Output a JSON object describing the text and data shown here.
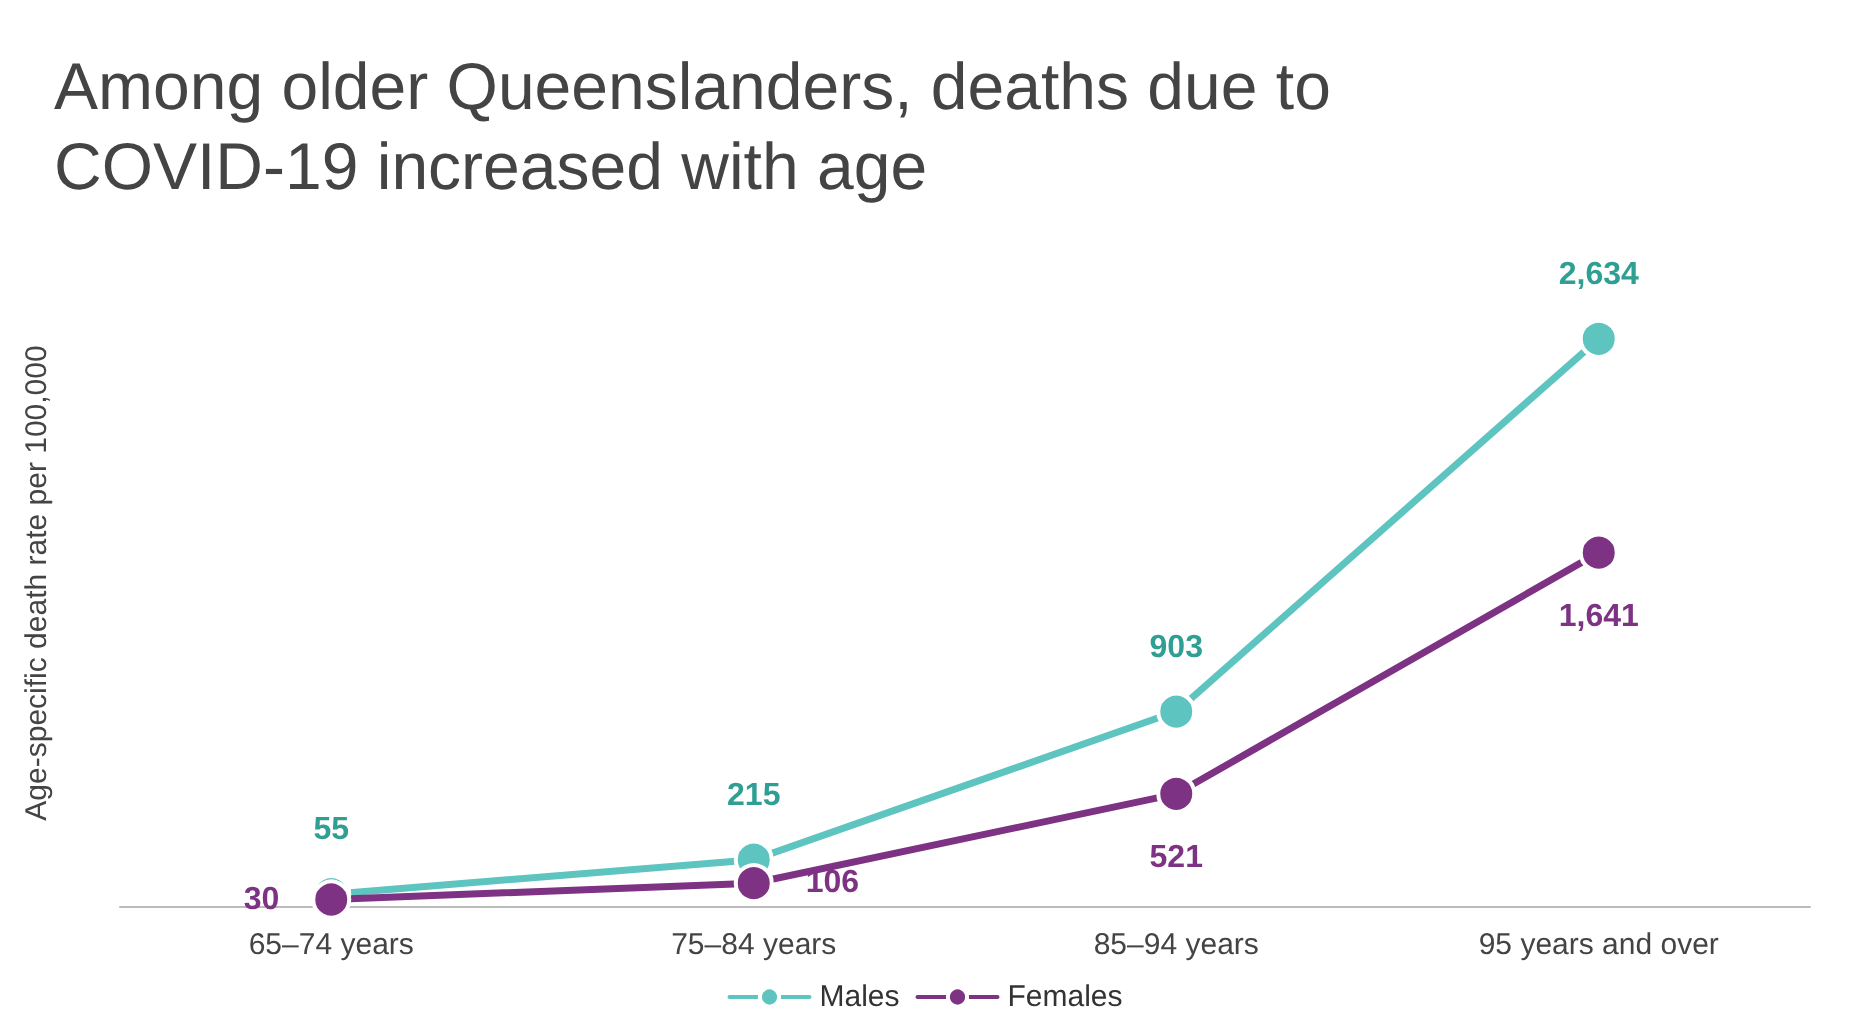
{
  "chart_data": {
    "type": "line",
    "title": "Among older Queenslanders, deaths due to COVID-19 increased with age",
    "ylabel": "Age-specific death rate per 100,000",
    "categories": [
      "65–74 years",
      "75–84 years",
      "85–94 years",
      "95 years and over"
    ],
    "series": [
      {
        "name": "Males",
        "color": "#5ec4c0",
        "values": [
          55,
          215,
          903,
          2634
        ],
        "value_labels": [
          "55",
          "215",
          "903",
          "2,634"
        ]
      },
      {
        "name": "Females",
        "color": "#7d3283",
        "values": [
          30,
          106,
          521,
          1641
        ],
        "value_labels": [
          "30",
          "106",
          "521",
          "1,641"
        ]
      }
    ],
    "marker": "circle",
    "line_style": "solid",
    "grid": false,
    "legend": "bottom"
  }
}
